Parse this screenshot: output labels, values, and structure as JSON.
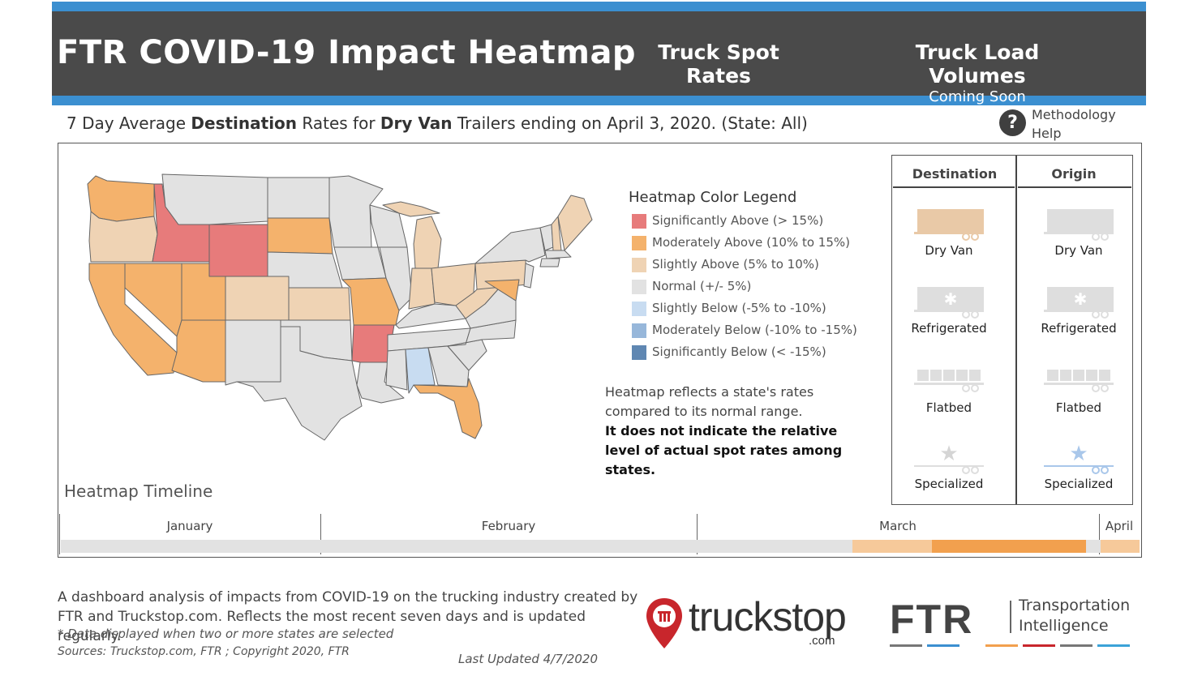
{
  "header": {
    "title": "FTR COVID-19 Impact Heatmap",
    "nav": [
      {
        "label": "Truck Spot Rates",
        "sub": ""
      },
      {
        "label": "Truck Load Volumes",
        "sub": "Coming Soon"
      }
    ]
  },
  "subtitle": {
    "prefix": "7 Day Average ",
    "metric": "Destination",
    "mid": " Rates for ",
    "trailer": "Dry Van",
    "suffix": " Trailers ending on April 3, 2020. (State: All)"
  },
  "help": {
    "icon": "?",
    "label": "Methodology Help"
  },
  "legend": {
    "title": "Heatmap Color Legend",
    "items": [
      {
        "label": "Significantly Above (> 15%)",
        "color": "#e77b7b"
      },
      {
        "label": "Moderately Above (10% to 15%)",
        "color": "#f4b26c"
      },
      {
        "label": "Slightly Above (5% to 10%)",
        "color": "#efd3b4"
      },
      {
        "label": "Normal (+/- 5%)",
        "color": "#e2e2e2"
      },
      {
        "label": "Slightly Below (-5% to -10%)",
        "color": "#c8dcf1"
      },
      {
        "label": "Moderately Below (-10% to -15%)",
        "color": "#97b7da"
      },
      {
        "label": "Significantly Below (< -15%)",
        "color": "#5f87b2"
      }
    ]
  },
  "note": {
    "line1": "Heatmap reflects a state's rates compared to its normal range.",
    "line2": "It does not indicate the relative level of actual spot rates among states."
  },
  "trailers": {
    "headers": {
      "destination": "Destination",
      "origin": "Origin"
    },
    "destination": [
      "Dry Van",
      "Refrigerated",
      "Flatbed",
      "Specialized"
    ],
    "origin": [
      "Dry Van",
      "Refrigerated",
      "Flatbed",
      "Specialized"
    ]
  },
  "timeline": {
    "title": "Heatmap Timeline",
    "months": [
      "January",
      "February",
      "March",
      "April"
    ]
  },
  "footer": {
    "description": "A dashboard analysis of impacts from COVID-19 on the trucking industry created by FTR and Truckstop.com. Reflects the most recent seven days and is updated regularly.",
    "note": "* Data displayed when two or more states are selected",
    "sources": "Sources: Truckstop.com, FTR ; Copyright 2020, FTR",
    "updated": "Last Updated 4/7/2020"
  },
  "logos": {
    "truckstop": "truckstop",
    "truckstop_suffix": ".com",
    "ftr": "FTR",
    "ftr_tagline_1": "Transportation",
    "ftr_tagline_2": "Intelligence"
  }
}
